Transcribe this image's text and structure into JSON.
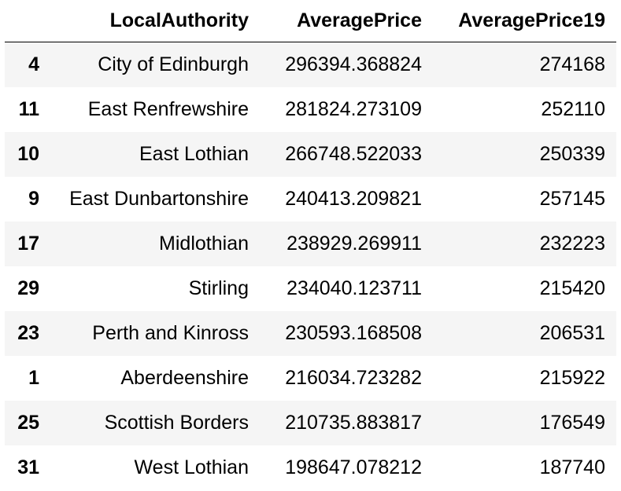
{
  "table": {
    "columns": [
      "",
      "LocalAuthority",
      "AveragePrice",
      "AveragePrice19"
    ],
    "rows": [
      {
        "index": "4",
        "local_authority": "City of Edinburgh",
        "average_price": "296394.368824",
        "average_price_19": "274168"
      },
      {
        "index": "11",
        "local_authority": "East Renfrewshire",
        "average_price": "281824.273109",
        "average_price_19": "252110"
      },
      {
        "index": "10",
        "local_authority": "East Lothian",
        "average_price": "266748.522033",
        "average_price_19": "250339"
      },
      {
        "index": "9",
        "local_authority": "East Dunbartonshire",
        "average_price": "240413.209821",
        "average_price_19": "257145"
      },
      {
        "index": "17",
        "local_authority": "Midlothian",
        "average_price": "238929.269911",
        "average_price_19": "232223"
      },
      {
        "index": "29",
        "local_authority": "Stirling",
        "average_price": "234040.123711",
        "average_price_19": "215420"
      },
      {
        "index": "23",
        "local_authority": "Perth and Kinross",
        "average_price": "230593.168508",
        "average_price_19": "206531"
      },
      {
        "index": "1",
        "local_authority": "Aberdeenshire",
        "average_price": "216034.723282",
        "average_price_19": "215922"
      },
      {
        "index": "25",
        "local_authority": "Scottish Borders",
        "average_price": "210735.883817",
        "average_price_19": "176549"
      },
      {
        "index": "31",
        "local_authority": "West Lothian",
        "average_price": "198647.078212",
        "average_price_19": "187740"
      }
    ]
  }
}
